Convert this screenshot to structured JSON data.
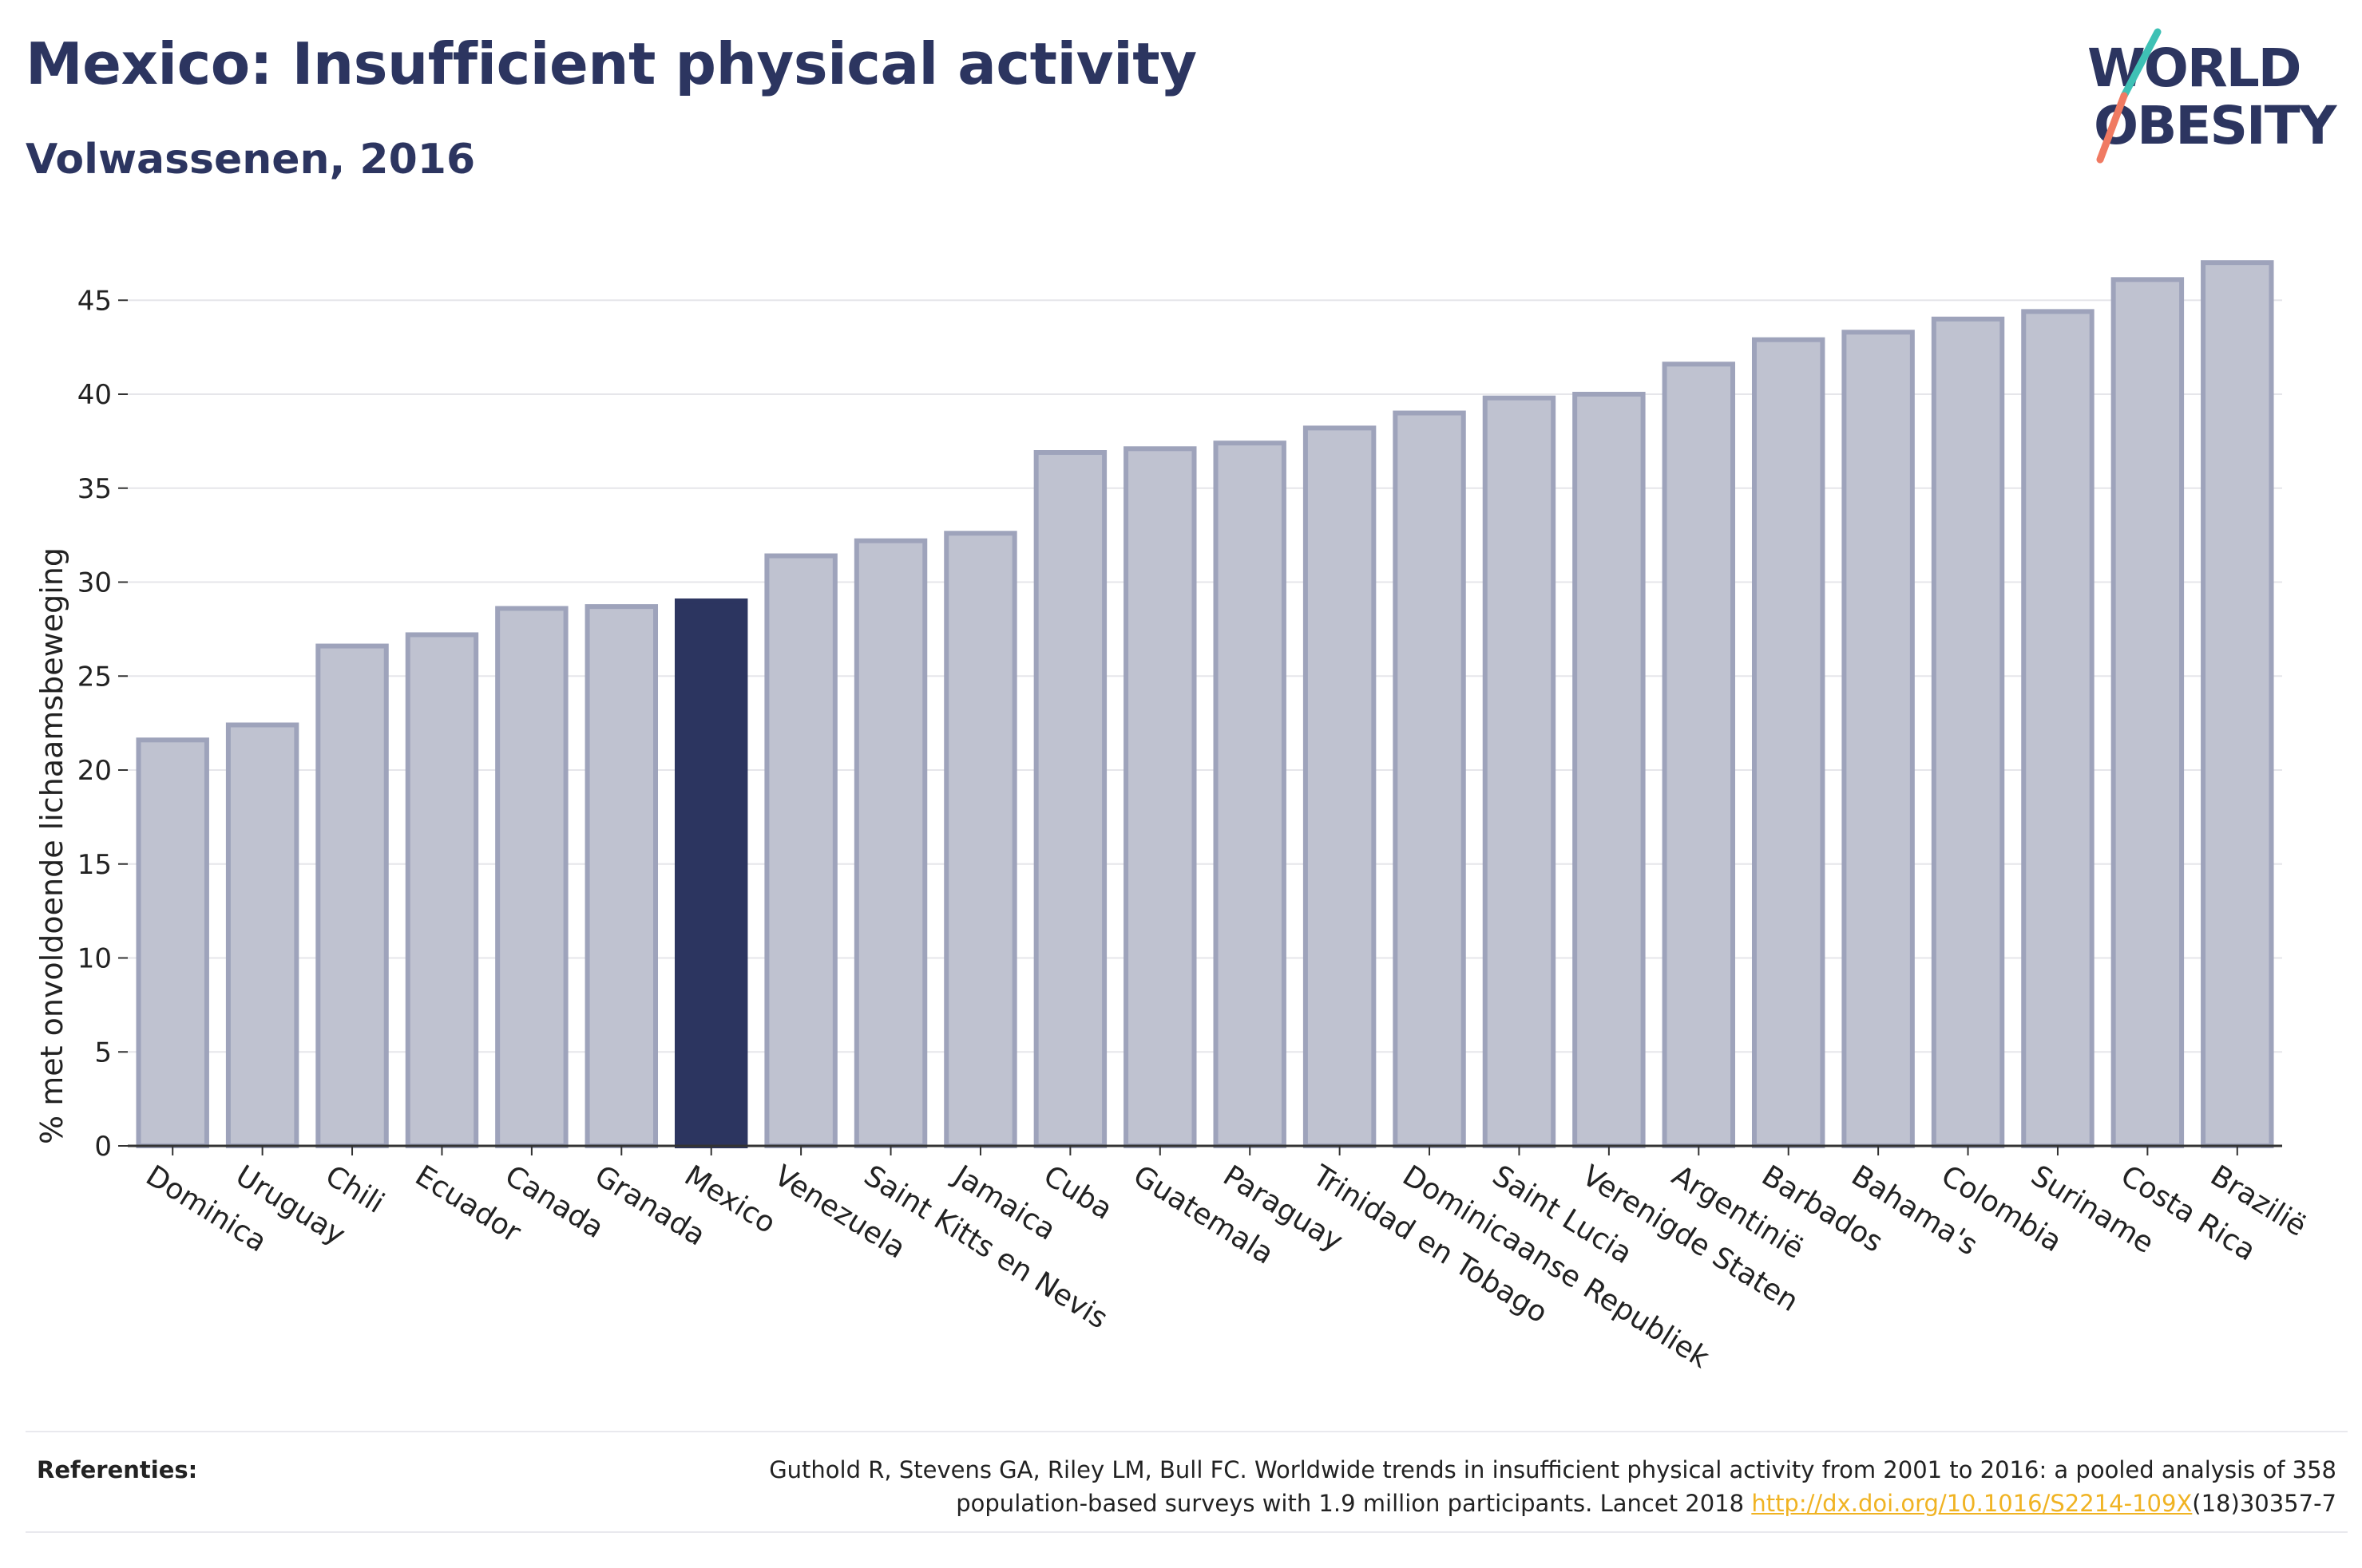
{
  "header": {
    "title": "Mexico: Insufficient physical activity",
    "subtitle": "Volwassenen, 2016"
  },
  "logo": {
    "line1": "W RLD",
    "line2": "BESITY",
    "line1_full": "WORLD",
    "line2_full": "OBESITY"
  },
  "footer": {
    "label": "Referenties:",
    "ref_line1": "Guthold R, Stevens GA, Riley LM, Bull FC. Worldwide trends in insufficient physical activity from 2001 to 2016: a pooled analysis of 358",
    "ref_line2_pre": "population-based surveys with 1.9 million participants. Lancet 2018 ",
    "ref_link": "http://dx.doi.org/10.1016/S2214-109X",
    "ref_line2_post": "(18)30357-7"
  },
  "colors": {
    "bar_default": "#bfc2d0",
    "bar_default_stroke": "#9ea3bb",
    "bar_highlight": "#2c3560",
    "title": "#2c3560",
    "grid": "#e6e6ea",
    "logo_teal": "#3ec1b5",
    "logo_coral": "#f07a62",
    "link": "#f0b323"
  },
  "chart_data": {
    "type": "bar",
    "title": "Mexico: Insufficient physical activity",
    "subtitle": "Volwassenen, 2016",
    "xlabel": "",
    "ylabel": "% met onvoldoende lichaamsbeweging",
    "ylim": [
      0,
      47
    ],
    "yticks": [
      0,
      5,
      10,
      15,
      20,
      25,
      30,
      35,
      40,
      45
    ],
    "grid": true,
    "highlight": "Mexico",
    "categories": [
      "Dominica",
      "Uruguay",
      "Chili",
      "Ecuador",
      "Canada",
      "Granada",
      "Mexico",
      "Venezuela",
      "Saint Kitts en Nevis",
      "Jamaica",
      "Cuba",
      "Guatemala",
      "Paraguay",
      "Trinidad en Tobago",
      "Dominicaanse Republiek",
      "Saint Lucia",
      "Verenigde Staten",
      "Argentinië",
      "Barbados",
      "Bahama's",
      "Colombia",
      "Suriname",
      "Costa Rica",
      "Brazilië"
    ],
    "values": [
      21.6,
      22.4,
      26.6,
      27.2,
      28.6,
      28.7,
      29.0,
      31.4,
      32.2,
      32.6,
      36.9,
      37.1,
      37.4,
      38.2,
      39.0,
      39.8,
      40.0,
      41.6,
      42.9,
      43.3,
      44.0,
      44.4,
      46.1,
      47.0
    ]
  }
}
